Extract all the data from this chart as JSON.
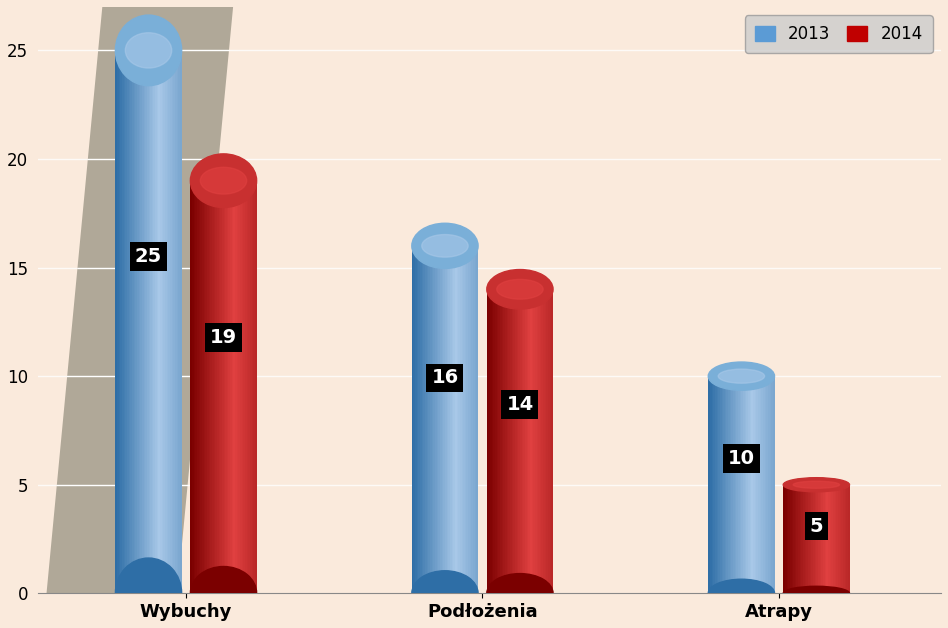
{
  "categories": [
    "Wybuchy",
    "Podłożenia",
    "Atrapy"
  ],
  "values_2013": [
    25,
    16,
    10
  ],
  "values_2014": [
    19,
    14,
    5
  ],
  "color_2013_body": "#5B9BD5",
  "color_2013_dark": "#2E6EA6",
  "color_2013_light": "#A8C8E8",
  "color_2013_top": "#7AAFD8",
  "color_2014_body": "#C00000",
  "color_2014_dark": "#7B0000",
  "color_2014_light": "#E04040",
  "color_2014_top": "#C83030",
  "background_plot": "#FAEADC",
  "background_wall": "#B0A898",
  "background_floor": "#F0EDE8",
  "ylim_max": 27,
  "yticks": [
    0,
    5,
    10,
    15,
    20,
    25
  ],
  "legend_2013": "2013",
  "legend_2014": "2014",
  "label_fontsize": 13,
  "tick_fontsize": 12,
  "value_fontsize": 14,
  "bar_width": 0.38,
  "cylinder_aspect": 0.13
}
